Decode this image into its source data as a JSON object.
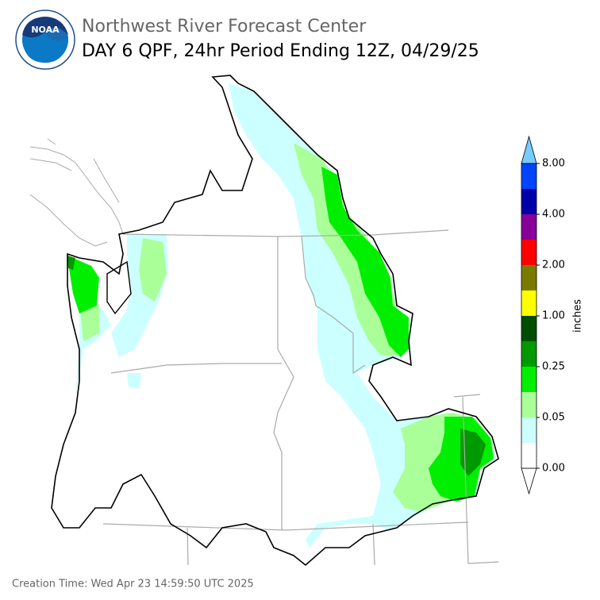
{
  "header": {
    "logo_text": "NOAA",
    "title": "Northwest River Forecast Center",
    "subtitle": "DAY 6 QPF, 24hr Period Ending 12Z, 04/29/25"
  },
  "colorbar": {
    "label": "inches",
    "colors": [
      "#ffffff",
      "#ccffff",
      "#aaff99",
      "#00ee00",
      "#009900",
      "#004d00",
      "#ffff00",
      "#7a7a00",
      "#ff0000",
      "#880099",
      "#0000aa",
      "#0044ff"
    ],
    "under_color": "#ffffff",
    "over_color": "#77ccff",
    "ticks": [
      {
        "value": 0,
        "label": "0.00"
      },
      {
        "value": 0.05,
        "label": "0.05"
      },
      {
        "value": 0.25,
        "label": "0.25"
      },
      {
        "value": 1,
        "label": "1.00"
      },
      {
        "value": 2,
        "label": "2.00"
      },
      {
        "value": 4,
        "label": "4.00"
      },
      {
        "value": 8,
        "label": "8.00"
      }
    ]
  },
  "footer": {
    "creation_time": "Creation Time: Wed Apr 23 14:59:50 UTC 2025"
  }
}
